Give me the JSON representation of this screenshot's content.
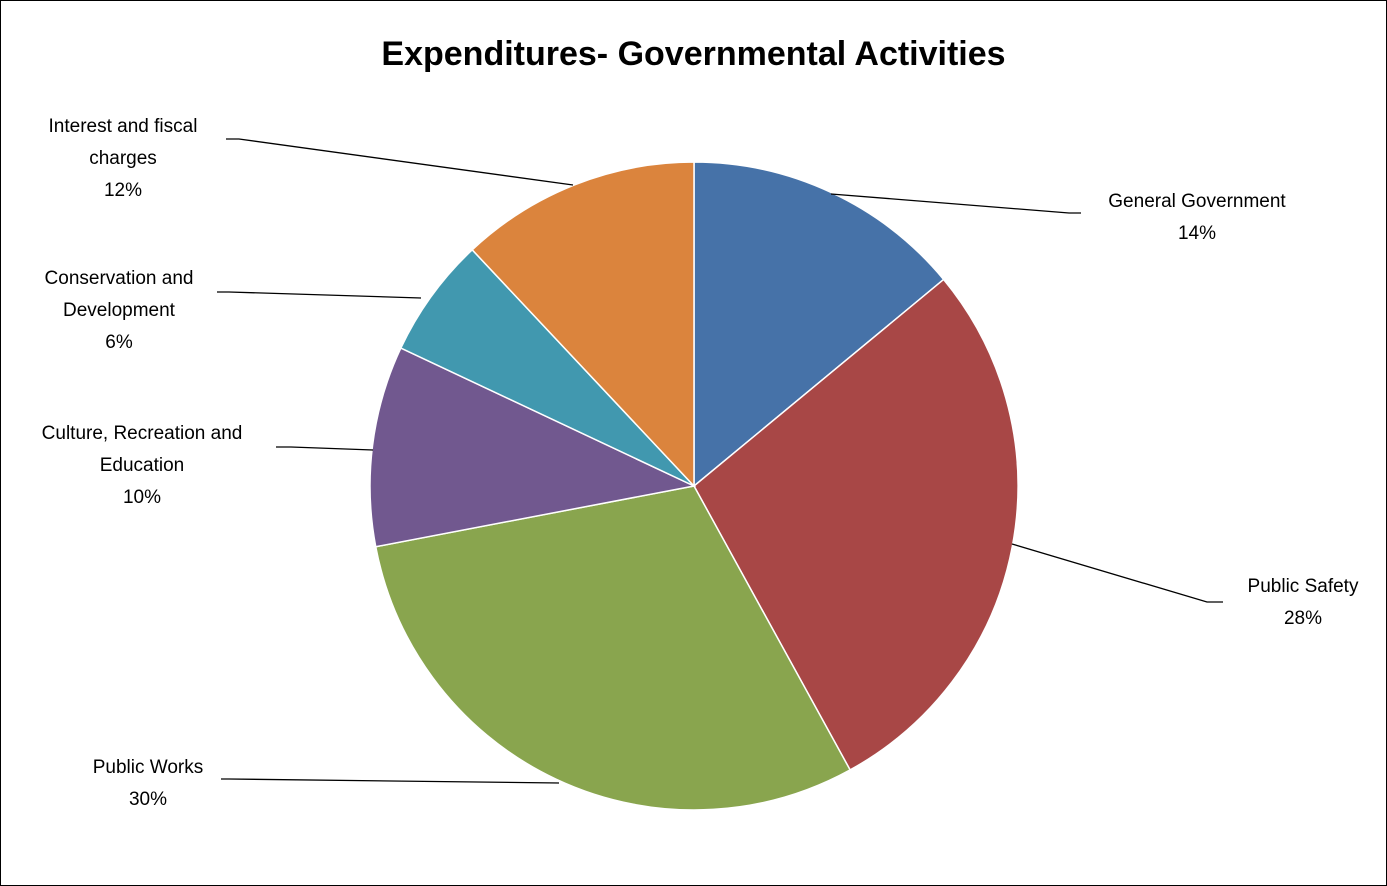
{
  "chart_data": {
    "type": "pie",
    "title": "Expenditures- Governmental Activities",
    "start_angle_deg": 0,
    "direction": "clockwise",
    "slices": [
      {
        "name": "General Government",
        "value": 14,
        "label_lines": [
          "General Government"
        ],
        "pct_label": "14%",
        "color": "#4672A8"
      },
      {
        "name": "Public Safety",
        "value": 28,
        "label_lines": [
          "Public Safety"
        ],
        "pct_label": "28%",
        "color": "#A84746"
      },
      {
        "name": "Public Works",
        "value": 30,
        "label_lines": [
          "Public Works"
        ],
        "pct_label": "30%",
        "color": "#89A54E"
      },
      {
        "name": "Culture, Recreation and Education",
        "value": 10,
        "label_lines": [
          "Culture, Recreation and",
          "Education"
        ],
        "pct_label": "10%",
        "color": "#71588F"
      },
      {
        "name": "Conservation and Development",
        "value": 6,
        "label_lines": [
          "Conservation and",
          "Development"
        ],
        "pct_label": "6%",
        "color": "#4198AF"
      },
      {
        "name": "Interest and fiscal charges",
        "value": 12,
        "label_lines": [
          "Interest and fiscal",
          "charges"
        ],
        "pct_label": "12%",
        "color": "#DB843D"
      }
    ]
  }
}
